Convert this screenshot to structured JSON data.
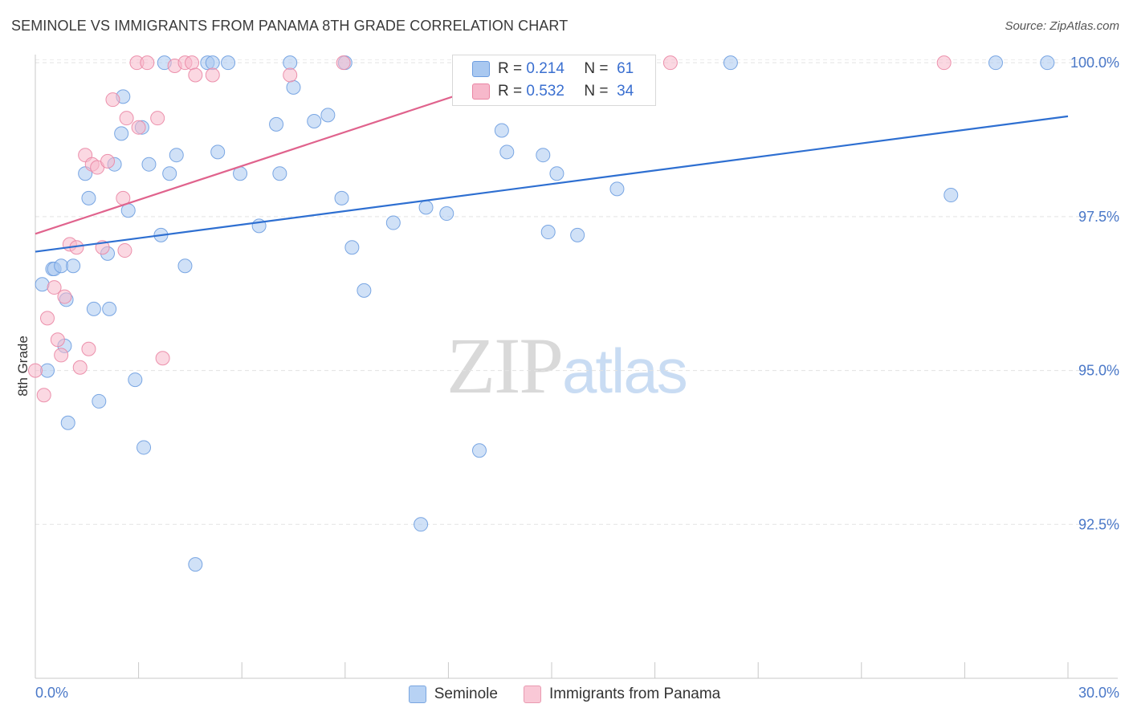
{
  "header": {
    "title": "SEMINOLE VS IMMIGRANTS FROM PANAMA 8TH GRADE CORRELATION CHART",
    "source": "Source: ZipAtlas.com"
  },
  "watermark": {
    "part1": "ZIP",
    "part2": "atlas"
  },
  "legend_top": [
    {
      "r_label": "R =",
      "r_value": "0.214",
      "n_label": "N =",
      "n_value": "61",
      "color": "#a9c8f0",
      "border": "#6d9de0"
    },
    {
      "r_label": "R =",
      "r_value": "0.532",
      "n_label": "N =",
      "n_value": "34",
      "color": "#f7b8cb",
      "border": "#ea86a4"
    }
  ],
  "legend_bottom": [
    {
      "label": "Seminole",
      "color": "#b7d2f4",
      "border": "#7aa6e0"
    },
    {
      "label": "Immigrants from Panama",
      "color": "#f9c8d6",
      "border": "#e99ab1"
    }
  ],
  "chart_data": {
    "type": "scatter",
    "title": "SEMINOLE VS IMMIGRANTS FROM PANAMA 8TH GRADE CORRELATION CHART",
    "xlabel": "",
    "ylabel": "8th Grade",
    "xlim": [
      0.0,
      30.0
    ],
    "ylim": [
      90.0,
      100.25
    ],
    "x_tick_labels": [
      "0.0%",
      "30.0%"
    ],
    "y_ticks": [
      92.5,
      95.0,
      97.5,
      100.0
    ],
    "y_tick_labels": [
      "92.5%",
      "95.0%",
      "97.5%",
      "100.0%"
    ],
    "grid": true,
    "series": [
      {
        "name": "Seminole",
        "color": "#6d9de0",
        "fill": "#a9c8f0",
        "trend": {
          "x": [
            0.0,
            30.0
          ],
          "y": [
            96.93,
            99.13
          ]
        },
        "points": [
          [
            0.2,
            96.4
          ],
          [
            0.35,
            95.0
          ],
          [
            0.5,
            96.65
          ],
          [
            0.55,
            96.65
          ],
          [
            0.75,
            96.7
          ],
          [
            0.85,
            95.4
          ],
          [
            0.9,
            96.15
          ],
          [
            0.95,
            94.15
          ],
          [
            1.1,
            96.7
          ],
          [
            1.45,
            98.2
          ],
          [
            1.55,
            97.8
          ],
          [
            1.7,
            96.0
          ],
          [
            1.85,
            94.5
          ],
          [
            2.15,
            96.0
          ],
          [
            2.1,
            96.9
          ],
          [
            2.3,
            98.35
          ],
          [
            2.5,
            98.85
          ],
          [
            2.55,
            99.45
          ],
          [
            2.7,
            97.6
          ],
          [
            2.9,
            94.85
          ],
          [
            3.1,
            98.95
          ],
          [
            3.15,
            93.75
          ],
          [
            3.3,
            98.35
          ],
          [
            3.65,
            97.2
          ],
          [
            3.75,
            100.0
          ],
          [
            3.9,
            98.2
          ],
          [
            4.1,
            98.5
          ],
          [
            4.35,
            96.7
          ],
          [
            4.65,
            91.85
          ],
          [
            5.0,
            100.0
          ],
          [
            5.15,
            100.0
          ],
          [
            5.3,
            98.55
          ],
          [
            5.6,
            100.0
          ],
          [
            5.95,
            98.2
          ],
          [
            6.5,
            97.35
          ],
          [
            7.0,
            99.0
          ],
          [
            7.1,
            98.2
          ],
          [
            7.4,
            100.0
          ],
          [
            7.5,
            99.6
          ],
          [
            8.1,
            99.05
          ],
          [
            8.5,
            99.15
          ],
          [
            8.9,
            97.8
          ],
          [
            9.0,
            100.0
          ],
          [
            9.2,
            97.0
          ],
          [
            9.55,
            96.3
          ],
          [
            10.4,
            97.4
          ],
          [
            11.2,
            92.5
          ],
          [
            11.35,
            97.65
          ],
          [
            11.95,
            97.55
          ],
          [
            12.9,
            93.7
          ],
          [
            13.55,
            98.9
          ],
          [
            13.7,
            98.55
          ],
          [
            14.75,
            98.5
          ],
          [
            14.9,
            97.25
          ],
          [
            15.15,
            98.2
          ],
          [
            15.75,
            97.2
          ],
          [
            16.9,
            97.95
          ],
          [
            20.2,
            100.0
          ],
          [
            26.6,
            97.85
          ],
          [
            27.9,
            100.0
          ],
          [
            29.4,
            100.0
          ]
        ]
      },
      {
        "name": "Immigrants from Panama",
        "color": "#ea86a4",
        "fill": "#f7b8cb",
        "trend": {
          "x": [
            0.0,
            14.85
          ],
          "y": [
            97.22,
            99.95
          ]
        },
        "points": [
          [
            0.0,
            95.0
          ],
          [
            0.25,
            94.6
          ],
          [
            0.35,
            95.85
          ],
          [
            0.55,
            96.35
          ],
          [
            0.65,
            95.5
          ],
          [
            0.75,
            95.25
          ],
          [
            0.85,
            96.2
          ],
          [
            1.0,
            97.05
          ],
          [
            1.2,
            97.0
          ],
          [
            1.3,
            95.05
          ],
          [
            1.45,
            98.5
          ],
          [
            1.55,
            95.35
          ],
          [
            1.65,
            98.35
          ],
          [
            1.8,
            98.3
          ],
          [
            1.95,
            97.0
          ],
          [
            2.1,
            98.4
          ],
          [
            2.25,
            99.4
          ],
          [
            2.55,
            97.8
          ],
          [
            2.6,
            96.95
          ],
          [
            2.65,
            99.1
          ],
          [
            2.95,
            100.0
          ],
          [
            3.0,
            98.95
          ],
          [
            3.25,
            100.0
          ],
          [
            3.55,
            99.1
          ],
          [
            3.7,
            95.2
          ],
          [
            4.05,
            99.95
          ],
          [
            4.35,
            100.0
          ],
          [
            4.55,
            100.0
          ],
          [
            4.65,
            99.8
          ],
          [
            5.15,
            99.8
          ],
          [
            7.4,
            99.8
          ],
          [
            8.95,
            100.0
          ],
          [
            18.45,
            100.0
          ],
          [
            26.4,
            100.0
          ]
        ]
      }
    ]
  }
}
